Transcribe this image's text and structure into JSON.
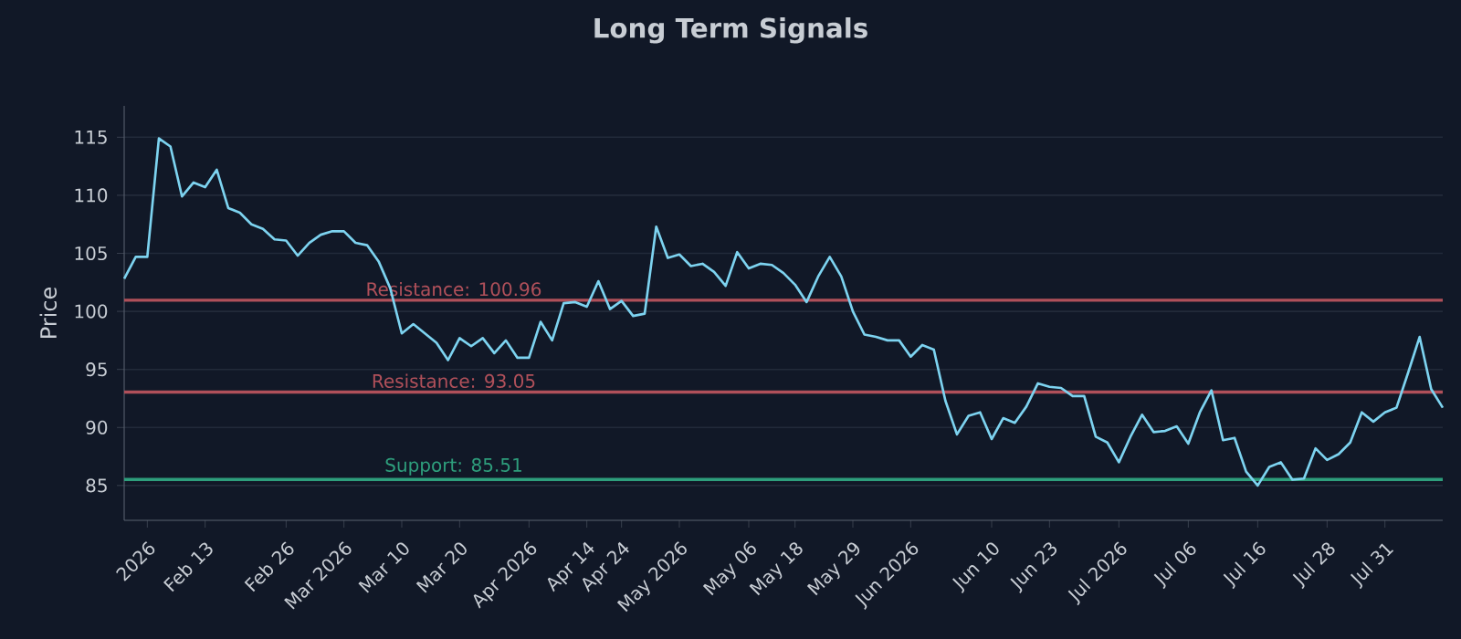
{
  "chart_data": {
    "type": "line",
    "title": "Long Term Signals",
    "ylabel": "Price",
    "categories": [
      null,
      null,
      "2026",
      null,
      null,
      null,
      null,
      "Feb 13",
      null,
      null,
      null,
      null,
      null,
      null,
      "Feb 26",
      null,
      null,
      null,
      null,
      "Mar 2026",
      null,
      null,
      null,
      null,
      "Mar 10",
      null,
      null,
      null,
      null,
      "Mar 20",
      null,
      null,
      null,
      null,
      null,
      "Apr 2026",
      null,
      null,
      null,
      null,
      "Apr 14",
      null,
      null,
      "Apr 24",
      null,
      null,
      null,
      null,
      "May 2026",
      null,
      null,
      null,
      null,
      null,
      "May 06",
      null,
      null,
      null,
      "May 18",
      null,
      null,
      null,
      null,
      "May 29",
      null,
      null,
      null,
      null,
      "Jun 2026",
      null,
      null,
      null,
      null,
      null,
      null,
      "Jun 10",
      null,
      null,
      null,
      null,
      "Jun 23",
      null,
      null,
      null,
      null,
      null,
      "Jul 2026",
      null,
      null,
      null,
      null,
      null,
      "Jul 06",
      null,
      null,
      null,
      null,
      null,
      "Jul 16",
      null,
      null,
      null,
      null,
      null,
      "Jul 28",
      null,
      null,
      null,
      null,
      "Jul 31",
      null,
      null,
      null,
      null,
      null
    ],
    "series": [
      {
        "color": "#7dd3f0",
        "values": [
          102.8,
          104.7,
          104.7,
          114.9,
          114.2,
          109.9,
          111.1,
          110.7,
          112.2,
          108.9,
          108.5,
          107.5,
          107.1,
          106.2,
          106.1,
          104.8,
          105.9,
          106.6,
          106.9,
          106.9,
          105.9,
          105.7,
          104.3,
          102.0,
          98.1,
          98.9,
          98.1,
          97.3,
          95.8,
          97.7,
          97.0,
          97.7,
          96.4,
          97.5,
          96.0,
          96.0,
          99.1,
          97.5,
          100.7,
          100.8,
          100.4,
          102.6,
          100.2,
          100.9,
          99.6,
          99.8,
          107.3,
          104.6,
          104.9,
          103.9,
          104.1,
          103.4,
          102.2,
          105.1,
          103.7,
          104.1,
          104.0,
          103.3,
          102.3,
          100.8,
          103.0,
          104.7,
          103.0,
          100.0,
          98.0,
          97.8,
          97.5,
          97.5,
          96.1,
          97.1,
          96.7,
          92.3,
          89.4,
          91.0,
          91.3,
          89.0,
          90.8,
          90.4,
          91.8,
          93.8,
          93.5,
          93.4,
          92.7,
          92.7,
          89.2,
          88.7,
          87.0,
          89.2,
          91.1,
          89.6,
          89.7,
          90.1,
          88.6,
          91.3,
          93.2,
          88.9,
          89.1,
          86.2,
          85.0,
          86.6,
          87.0,
          85.5,
          85.6,
          88.2,
          87.2,
          87.7,
          88.7,
          91.3,
          90.5,
          91.3,
          91.7,
          94.7,
          97.8,
          93.3,
          91.7
        ]
      }
    ],
    "ylim": [
      82,
      117.7
    ],
    "yticks": [
      85,
      90,
      95,
      100,
      105,
      110,
      115
    ],
    "grid": "y",
    "marker": "none",
    "line_style": "solid",
    "ref_lines": [
      {
        "axis": "y",
        "value": 100.96,
        "label": "Resistance: 100.96",
        "color": "#b0505a"
      },
      {
        "axis": "y",
        "value": 93.05,
        "label": "Resistance: 93.05",
        "color": "#b0505a"
      },
      {
        "axis": "y",
        "value": 85.51,
        "label": "Support: 85.51",
        "color": "#2e9e7c"
      }
    ]
  }
}
